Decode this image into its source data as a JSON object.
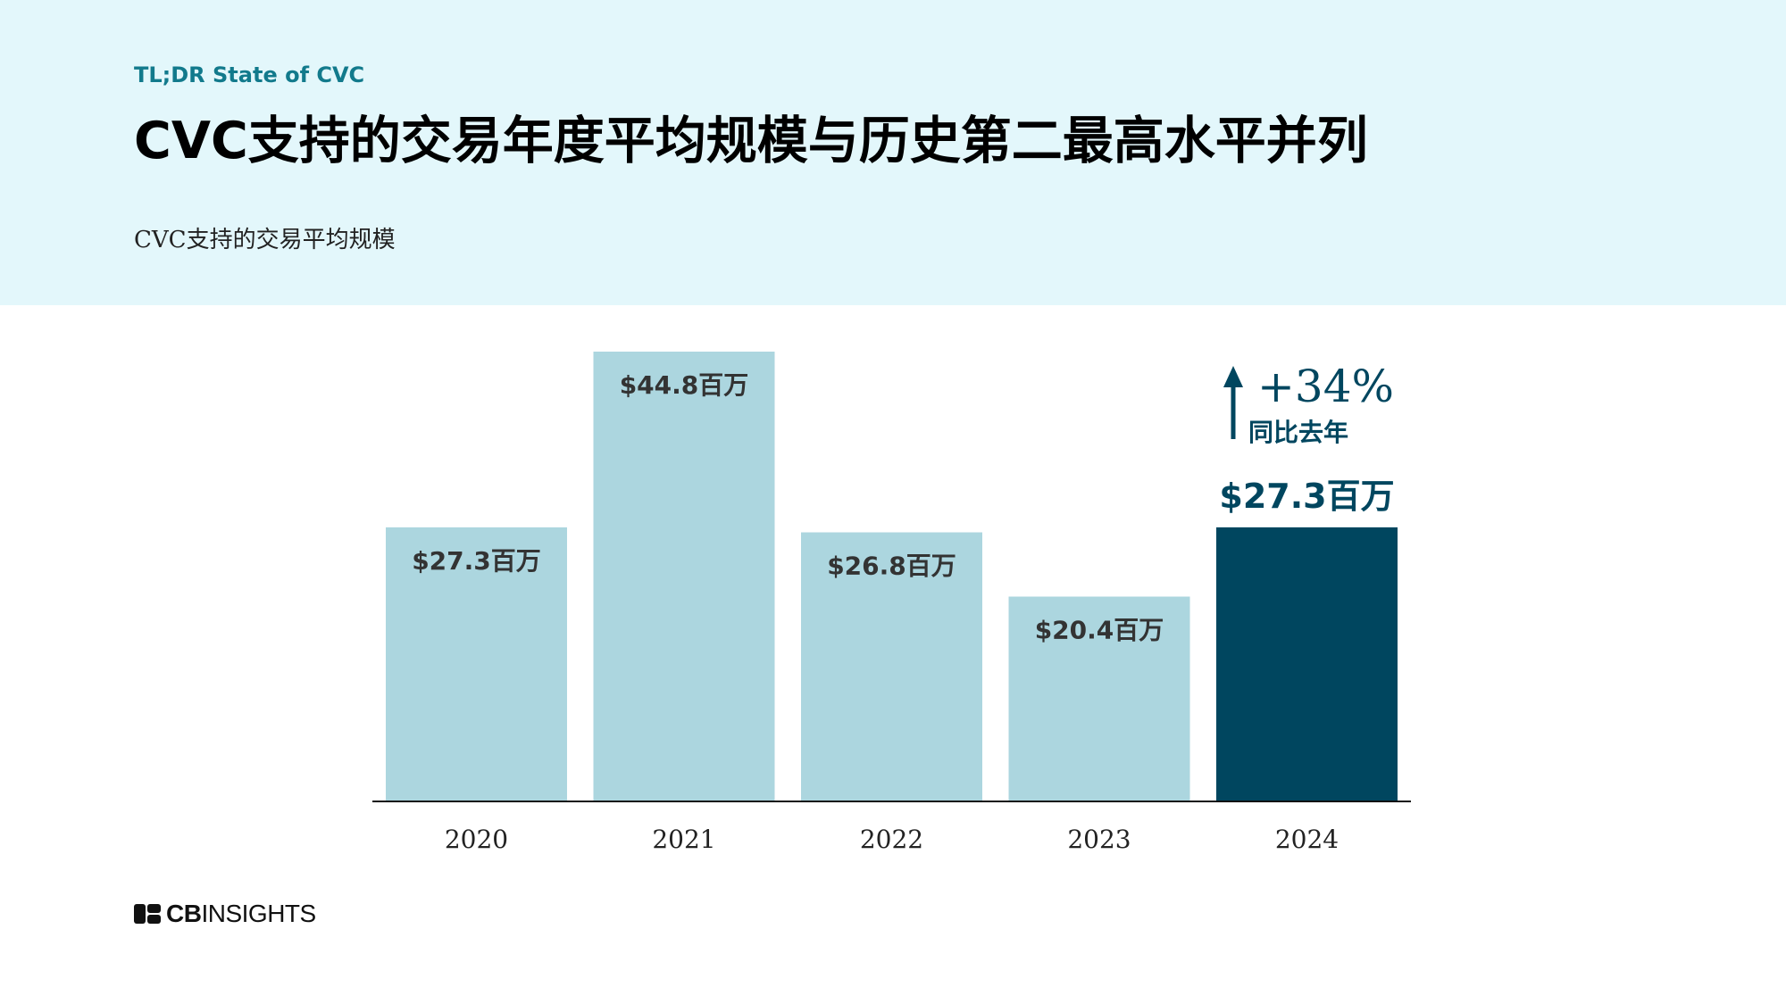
{
  "header": {
    "eyebrow": "TL;DR State of CVC",
    "title": "CVC支持的交易年度平均规模与历史第二最高水平并列",
    "subtitle": "CVC支持的交易平均规模"
  },
  "chart_data": {
    "type": "bar",
    "title": "",
    "xlabel": "",
    "ylabel": "",
    "categories": [
      "2020",
      "2021",
      "2022",
      "2023",
      "2024"
    ],
    "values": [
      27.3,
      44.8,
      26.8,
      20.4,
      27.3
    ],
    "data_labels": [
      "$27.3百万",
      "$44.8百万",
      "$26.8百万",
      "$20.4百万",
      "$27.3百万"
    ],
    "ylim": [
      0,
      44.8
    ],
    "grid": false,
    "legend": "none",
    "colors": {
      "default": "#acd6df",
      "highlight": "#00465f",
      "label_default": "#333333",
      "label_highlight": "#00465f"
    },
    "highlight_index": 4,
    "annotation": {
      "arrow": "up-arrow-icon",
      "change": "+34%",
      "caption": "同比去年"
    }
  },
  "footer": {
    "logo_bold": "CB",
    "logo_light": "INSIGHTS"
  }
}
